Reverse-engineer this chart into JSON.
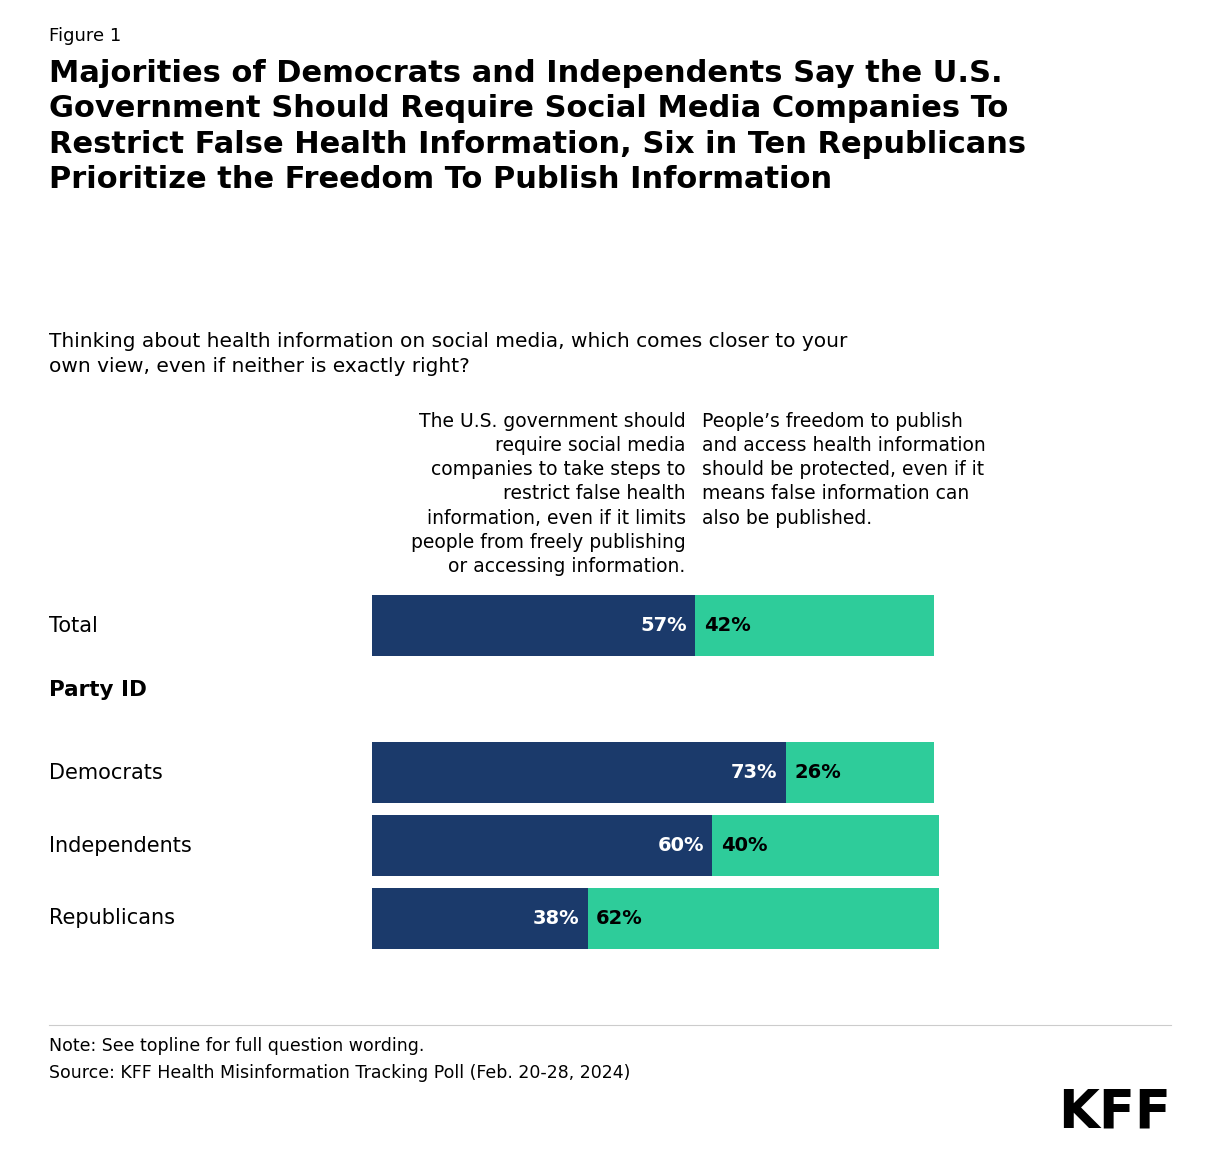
{
  "figure_label": "Figure 1",
  "title": "Majorities of Democrats and Independents Say the U.S.\nGovernment Should Require Social Media Companies To\nRestrict False Health Information, Six in Ten Republicans\nPrioritize the Freedom To Publish Information",
  "subtitle": "Thinking about health information on social media, which comes closer to your\nown view, even if neither is exactly right?",
  "col_header_left": "The U.S. government should\nrequire social media\ncompanies to take steps to\nrestrict false health\ninformation, even if it limits\npeople from freely publishing\nor accessing information.",
  "col_header_right": "People’s freedom to publish\nand access health information\nshould be protected, even if it\nmeans false information can\nalso be published.",
  "categories": [
    "Total",
    "Party ID",
    "Democrats",
    "Independents",
    "Republicans"
  ],
  "values_left": [
    57,
    null,
    73,
    60,
    38
  ],
  "values_right": [
    42,
    null,
    26,
    40,
    62
  ],
  "color_left": "#1B3A6B",
  "color_right": "#2ECC9A",
  "note_line1": "Note: See topline for full question wording.",
  "note_line2": "Source: KFF Health Misinformation Tracking Poll (Feb. 20-28, 2024)",
  "background_color": "#FFFFFF",
  "text_color": "#000000",
  "bar_label_color_left": "#FFFFFF",
  "bar_label_color_right": "#000000",
  "figsize": [
    12.2,
    11.76
  ],
  "dpi": 100
}
